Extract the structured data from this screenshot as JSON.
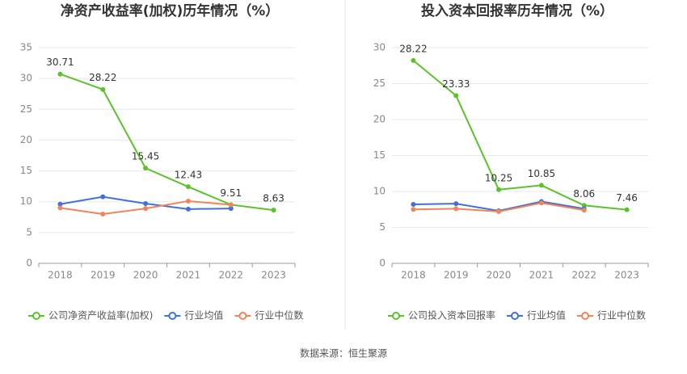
{
  "chart_data": [
    {
      "type": "line",
      "title": "净资产收益率(加权)历年情况（%）",
      "categories": [
        "2018",
        "2019",
        "2020",
        "2021",
        "2022",
        "2023"
      ],
      "ylim": [
        0,
        35
      ],
      "yticks": [
        0,
        5,
        10,
        15,
        20,
        25,
        30,
        35
      ],
      "grid": true,
      "series": [
        {
          "name": "公司净资产收益率(加权)",
          "color": "#5cc22a",
          "show_values": true,
          "values": [
            30.71,
            28.22,
            15.45,
            12.43,
            9.51,
            8.63
          ]
        },
        {
          "name": "行业均值",
          "color": "#3f72d8",
          "values": [
            9.6,
            10.8,
            9.7,
            8.8,
            8.9,
            null
          ]
        },
        {
          "name": "行业中位数",
          "color": "#f0845a",
          "values": [
            9.0,
            8.0,
            8.9,
            10.1,
            9.5,
            null
          ]
        }
      ]
    },
    {
      "type": "line",
      "title": "投入资本回报率历年情况（%）",
      "categories": [
        "2018",
        "2019",
        "2020",
        "2021",
        "2022",
        "2023"
      ],
      "ylim": [
        0,
        30
      ],
      "yticks": [
        0,
        5,
        10,
        15,
        20,
        25,
        30
      ],
      "grid": true,
      "series": [
        {
          "name": "公司投入资本回报率",
          "color": "#5cc22a",
          "show_values": true,
          "values": [
            28.22,
            23.33,
            10.25,
            10.85,
            8.06,
            7.46
          ]
        },
        {
          "name": "行业均值",
          "color": "#3f72d8",
          "values": [
            8.2,
            8.3,
            7.3,
            8.6,
            7.6,
            null
          ]
        },
        {
          "name": "行业中位数",
          "color": "#f0845a",
          "values": [
            7.5,
            7.6,
            7.2,
            8.4,
            7.4,
            null
          ]
        }
      ]
    }
  ],
  "footer": "数据来源：恒生聚源"
}
